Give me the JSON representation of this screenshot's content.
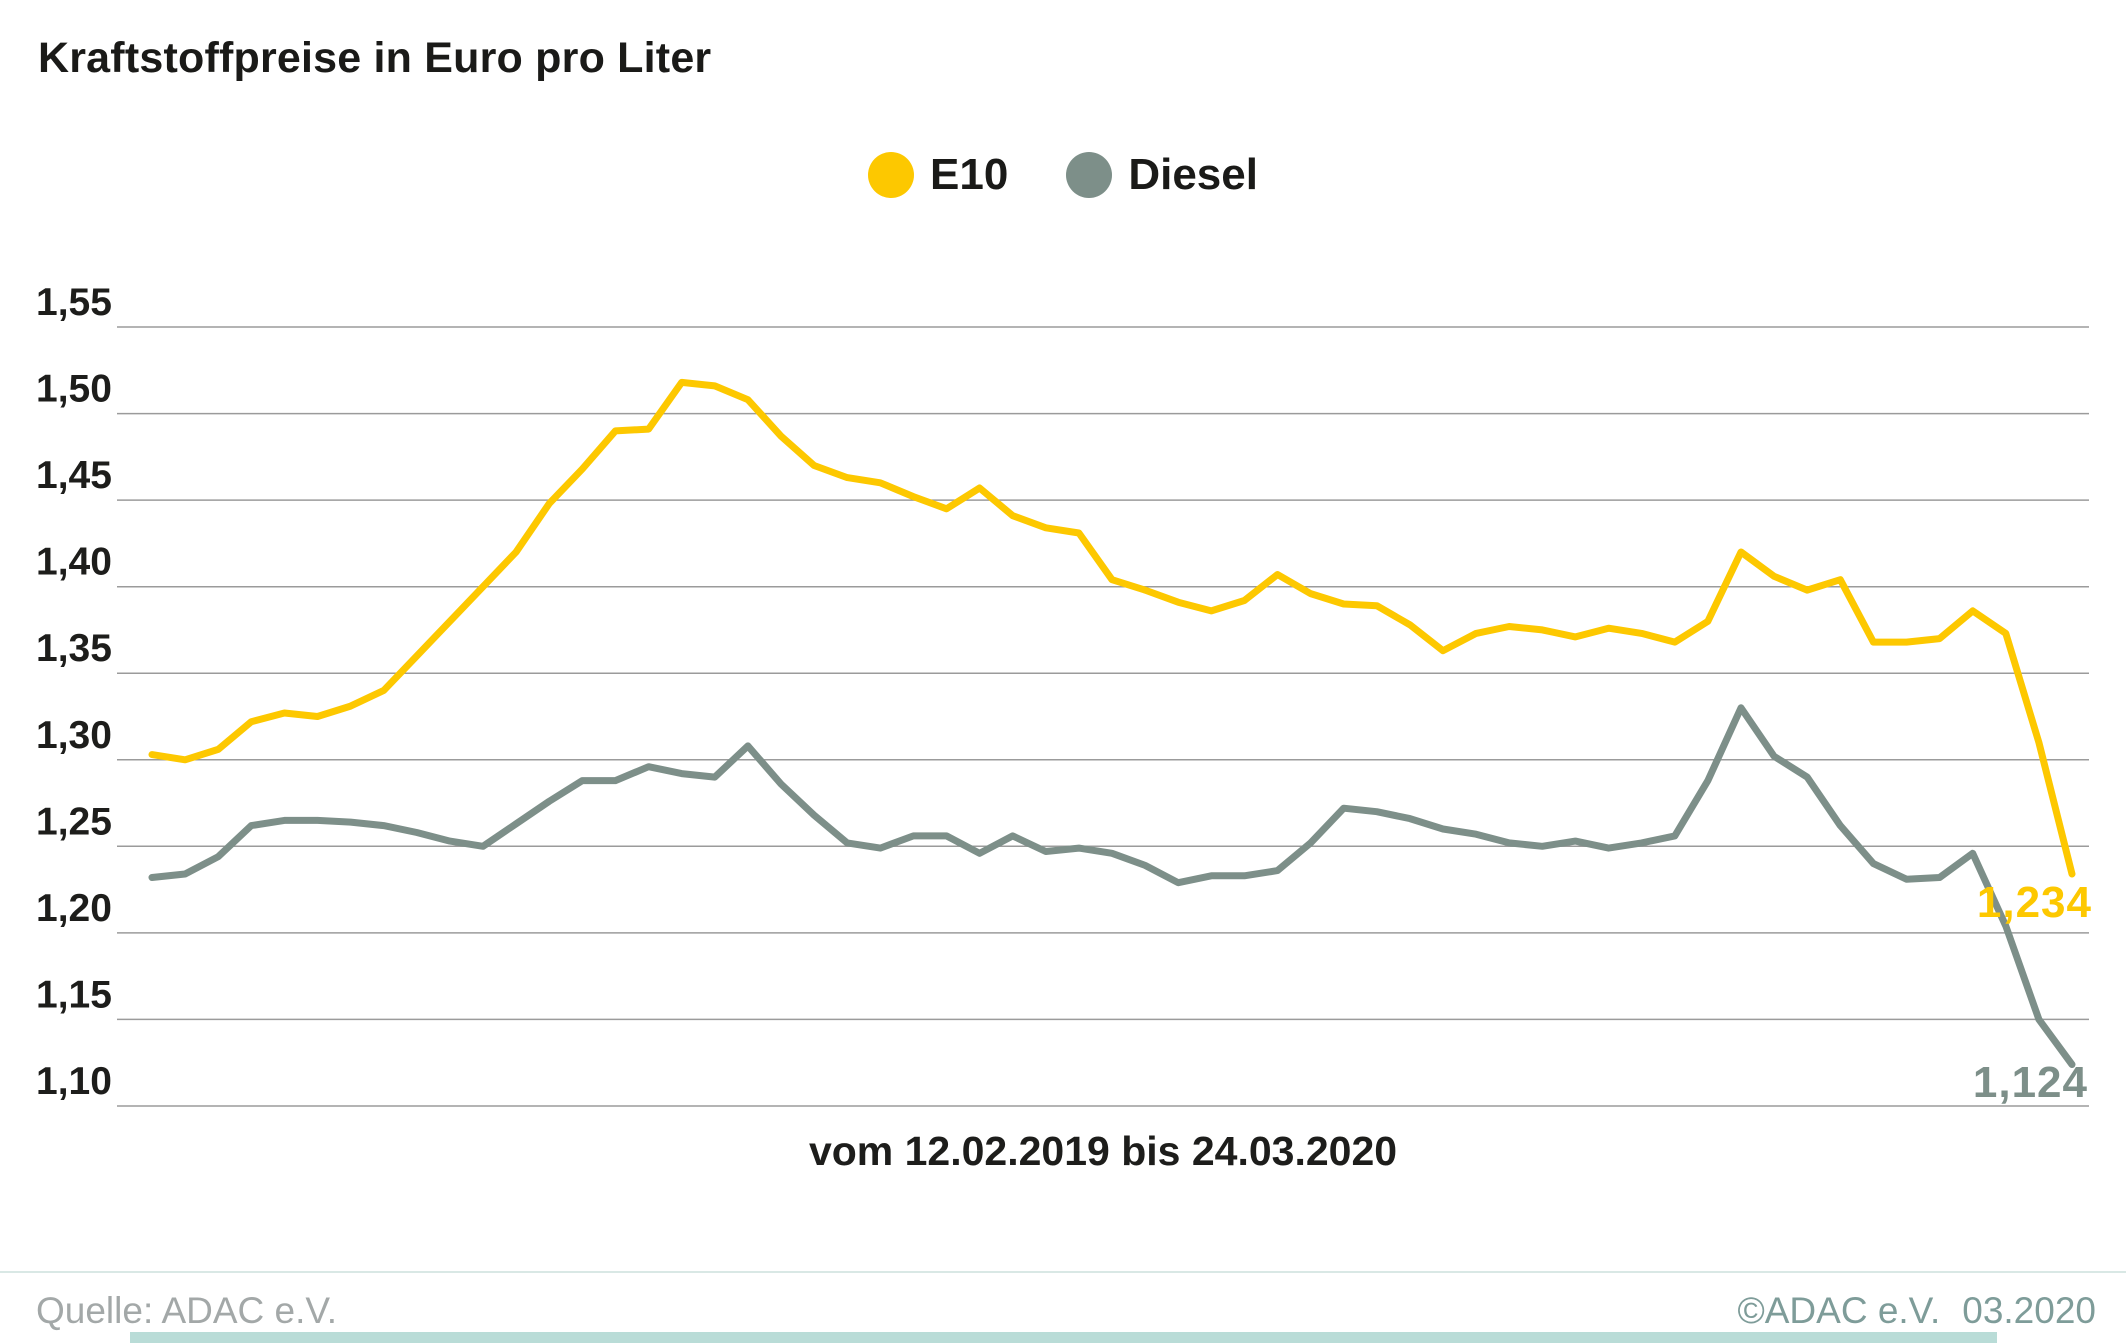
{
  "title": "Kraftstoffpreise in Euro pro Liter",
  "chart_data": {
    "type": "line",
    "title": "Kraftstoffpreise in Euro pro Liter",
    "x_caption": "vom 12.02.2019 bis 24.03.2020",
    "x_range": [
      "12.02.2019",
      "24.03.2020"
    ],
    "ylim": [
      1.1,
      1.55
    ],
    "ytick_values": [
      1.55,
      1.5,
      1.45,
      1.4,
      1.35,
      1.3,
      1.25,
      1.2,
      1.15,
      1.1
    ],
    "ytick_labels": [
      "1,55",
      "1,50",
      "1,45",
      "1,40",
      "1,35",
      "1,30",
      "1,25",
      "1,20",
      "1,15",
      "1,10"
    ],
    "grid": true,
    "grid_color": "#9b9b9b",
    "legend_position": "top-center",
    "series": [
      {
        "name": "E10",
        "color": "#fdc800",
        "end_label": "1,234",
        "end_value": 1.234,
        "values": [
          1.303,
          1.3,
          1.306,
          1.322,
          1.327,
          1.325,
          1.331,
          1.34,
          1.36,
          1.38,
          1.4,
          1.42,
          1.448,
          1.468,
          1.49,
          1.491,
          1.518,
          1.516,
          1.508,
          1.487,
          1.47,
          1.463,
          1.46,
          1.452,
          1.445,
          1.457,
          1.441,
          1.434,
          1.431,
          1.404,
          1.398,
          1.391,
          1.386,
          1.392,
          1.407,
          1.396,
          1.39,
          1.389,
          1.378,
          1.363,
          1.373,
          1.377,
          1.375,
          1.371,
          1.376,
          1.373,
          1.368,
          1.38,
          1.42,
          1.406,
          1.398,
          1.404,
          1.368,
          1.368,
          1.37,
          1.386,
          1.373,
          1.31,
          1.234
        ]
      },
      {
        "name": "Diesel",
        "color": "#7d8f89",
        "end_label": "1,124",
        "end_value": 1.124,
        "values": [
          1.232,
          1.234,
          1.244,
          1.262,
          1.265,
          1.265,
          1.264,
          1.262,
          1.258,
          1.253,
          1.25,
          1.263,
          1.276,
          1.288,
          1.288,
          1.296,
          1.292,
          1.29,
          1.308,
          1.286,
          1.268,
          1.252,
          1.249,
          1.256,
          1.256,
          1.246,
          1.256,
          1.247,
          1.249,
          1.246,
          1.239,
          1.229,
          1.233,
          1.233,
          1.236,
          1.252,
          1.272,
          1.27,
          1.266,
          1.26,
          1.257,
          1.252,
          1.25,
          1.253,
          1.249,
          1.252,
          1.256,
          1.288,
          1.33,
          1.302,
          1.29,
          1.262,
          1.24,
          1.231,
          1.232,
          1.246,
          1.204,
          1.15,
          1.124
        ]
      }
    ]
  },
  "footer": {
    "source": "Quelle: ADAC e.V.",
    "copyright": "©ADAC e.V.",
    "date": "03.2020"
  }
}
